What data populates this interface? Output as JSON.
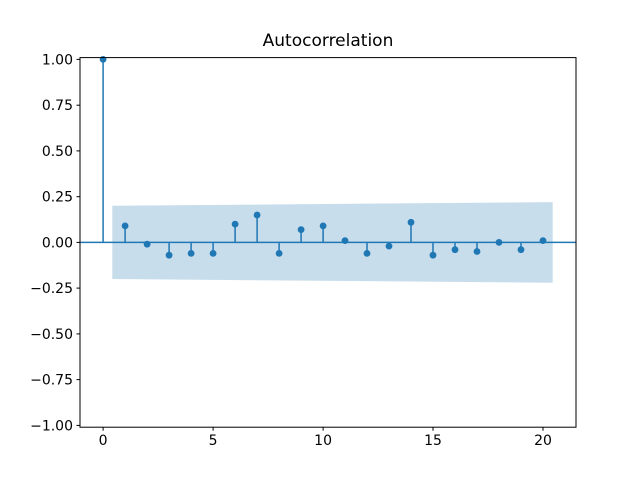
{
  "chart_data": {
    "type": "stem",
    "title": "Autocorrelation",
    "xlabel": "",
    "ylabel": "",
    "x": [
      0,
      1,
      2,
      3,
      4,
      5,
      6,
      7,
      8,
      9,
      10,
      11,
      12,
      13,
      14,
      15,
      16,
      17,
      18,
      19,
      20
    ],
    "values": [
      1.0,
      0.09,
      -0.01,
      -0.07,
      -0.06,
      -0.06,
      0.1,
      0.15,
      -0.06,
      0.07,
      0.09,
      0.01,
      -0.06,
      -0.02,
      0.11,
      -0.07,
      -0.04,
      -0.05,
      0.0,
      -0.04,
      0.01
    ],
    "xlim": [
      -1.05,
      21.5
    ],
    "ylim": [
      -1.01,
      1.01
    ],
    "xticks": {
      "values": [
        0,
        5,
        10,
        15,
        20
      ],
      "labels": [
        "0",
        "5",
        "10",
        "15",
        "20"
      ]
    },
    "yticks": {
      "values": [
        1.0,
        0.75,
        0.5,
        0.25,
        0.0,
        -0.25,
        -0.5,
        -0.75,
        -1.0
      ],
      "labels": [
        "1.00",
        "0.75",
        "0.50",
        "0.25",
        "0.00",
        "−0.25",
        "−0.50",
        "−0.75",
        "−1.00"
      ]
    },
    "confidence_band": {
      "x_start": 0.42,
      "x_end": 20.44,
      "upper_start": 0.2,
      "upper_end": 0.22,
      "lower_start": -0.2,
      "lower_end": -0.22
    },
    "colors": {
      "stem": "#1f77b4",
      "marker": "#1f77b4",
      "band": "#1f77b4",
      "band_opacity": 0.25,
      "spine": "#000000",
      "tick_label": "#000000"
    },
    "grid": false
  }
}
